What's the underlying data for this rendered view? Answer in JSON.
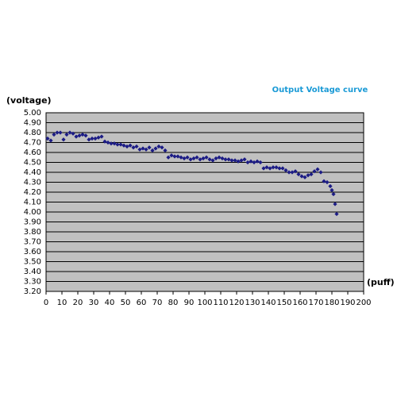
{
  "chart_data": {
    "type": "scatter",
    "title": "Output Voltage curve",
    "y_label": "(voltage)",
    "x_label": "(puff)",
    "color": "#1c1c85",
    "plot_background": "#c0c0c0",
    "grid": true,
    "xlim": [
      0,
      200
    ],
    "xticks": [
      0,
      10,
      20,
      30,
      40,
      50,
      60,
      70,
      80,
      90,
      100,
      110,
      120,
      130,
      140,
      150,
      160,
      170,
      180,
      190,
      200
    ],
    "ylim": [
      3.2,
      5.0
    ],
    "yticks": [
      {
        "value": 3.2,
        "label": "3.20"
      },
      {
        "value": 3.3,
        "label": "3.30"
      },
      {
        "value": 3.4,
        "label": "3.40"
      },
      {
        "value": 3.5,
        "label": "3.50"
      },
      {
        "value": 3.6,
        "label": "3.60"
      },
      {
        "value": 3.7,
        "label": "3.70"
      },
      {
        "value": 3.8,
        "label": "3.80"
      },
      {
        "value": 3.9,
        "label": "3.90"
      },
      {
        "value": 4.0,
        "label": "4.00"
      },
      {
        "value": 4.1,
        "label": "4.10"
      },
      {
        "value": 4.2,
        "label": "4.20"
      },
      {
        "value": 4.3,
        "label": "4.30"
      },
      {
        "value": 4.4,
        "label": "4.40"
      },
      {
        "value": 4.5,
        "label": "4.50"
      },
      {
        "value": 4.6,
        "label": "4.60"
      },
      {
        "value": 4.7,
        "label": "4.70"
      },
      {
        "value": 4.8,
        "label": "4.80"
      },
      {
        "value": 4.9,
        "label": "4.90"
      },
      {
        "value": 5.0,
        "label": "5.00"
      }
    ],
    "x": [
      1,
      3,
      5,
      7,
      9,
      11,
      13,
      15,
      17,
      19,
      21,
      23,
      25,
      27,
      29,
      31,
      33,
      35,
      37,
      39,
      41,
      43,
      45,
      47,
      49,
      51,
      53,
      55,
      57,
      59,
      61,
      63,
      65,
      67,
      69,
      71,
      73,
      75,
      77,
      79,
      81,
      83,
      85,
      87,
      89,
      91,
      93,
      95,
      97,
      99,
      101,
      103,
      105,
      107,
      109,
      111,
      113,
      115,
      117,
      119,
      121,
      123,
      125,
      127,
      129,
      131,
      133,
      135,
      137,
      139,
      141,
      143,
      145,
      147,
      149,
      151,
      153,
      155,
      157,
      159,
      161,
      163,
      165,
      167,
      169,
      171,
      173,
      175,
      177,
      179,
      180,
      181,
      182,
      183
    ],
    "values": [
      4.74,
      4.72,
      4.78,
      4.8,
      4.8,
      4.73,
      4.78,
      4.8,
      4.79,
      4.76,
      4.77,
      4.78,
      4.77,
      4.73,
      4.74,
      4.74,
      4.75,
      4.76,
      4.71,
      4.7,
      4.69,
      4.69,
      4.68,
      4.68,
      4.67,
      4.66,
      4.67,
      4.65,
      4.66,
      4.63,
      4.64,
      4.63,
      4.65,
      4.62,
      4.64,
      4.66,
      4.65,
      4.62,
      4.55,
      4.57,
      4.56,
      4.56,
      4.55,
      4.54,
      4.55,
      4.53,
      4.54,
      4.55,
      4.53,
      4.54,
      4.55,
      4.53,
      4.52,
      4.54,
      4.55,
      4.54,
      4.53,
      4.53,
      4.52,
      4.52,
      4.51,
      4.52,
      4.53,
      4.5,
      4.51,
      4.5,
      4.51,
      4.5,
      4.44,
      4.45,
      4.44,
      4.45,
      4.45,
      4.44,
      4.44,
      4.42,
      4.4,
      4.4,
      4.41,
      4.38,
      4.36,
      4.35,
      4.37,
      4.38,
      4.41,
      4.43,
      4.4,
      4.31,
      4.3,
      4.26,
      4.22,
      4.18,
      4.08,
      3.98
    ]
  }
}
